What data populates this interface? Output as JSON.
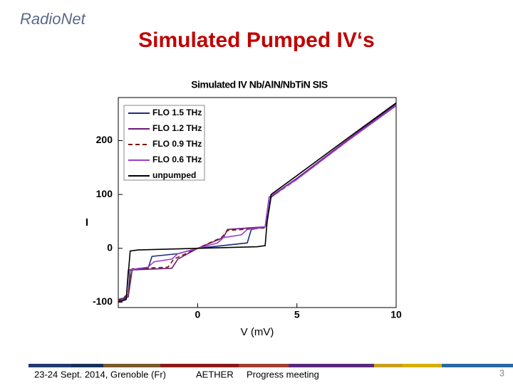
{
  "slide": {
    "logo": "RadioNet",
    "title": "Simulated Pumped IV‘s",
    "footer": {
      "date": "23-24  Sept. 2014, Grenoble (Fr)",
      "project": "AETHER",
      "meeting": "Progress meeting",
      "page": "3"
    }
  },
  "chart_data": {
    "type": "line",
    "title": "Simulated IV Nb/AlN/NbTiN  SIS",
    "x_label": "V  (mV)",
    "y_label": "I",
    "xlim": [
      -4,
      10
    ],
    "ylim": [
      -110,
      280
    ],
    "xticks": [
      0,
      5,
      10
    ],
    "yticks": [
      -100,
      0,
      100,
      200
    ],
    "series": [
      {
        "name": "FLO 1.5 THz",
        "color": "#1f2d7a",
        "dash": false,
        "x": [
          -4,
          -3.5,
          -3.4,
          -2.5,
          -2.3,
          -1,
          0,
          2.5,
          2.7,
          3.4,
          3.5,
          3.7,
          5,
          7.5,
          10
        ],
        "values": [
          -95,
          -90,
          -40,
          -37,
          -15,
          -10,
          0,
          10,
          35,
          40,
          50,
          95,
          130,
          198,
          265
        ]
      },
      {
        "name": "FLO 1.2 THz",
        "color": "#6a1a7a",
        "dash": false,
        "x": [
          -4,
          -3.5,
          -3.3,
          -1.3,
          -1,
          0,
          1.3,
          1.5,
          3.4,
          3.6,
          3.8,
          5,
          7.5,
          10
        ],
        "values": [
          -100,
          -90,
          -40,
          -37,
          -20,
          0,
          20,
          35,
          40,
          95,
          100,
          130,
          200,
          268
        ]
      },
      {
        "name": "FLO  0.9 THz",
        "color": "#7a1010",
        "dash": true,
        "x": [
          -4,
          -3.5,
          -3.3,
          -1.5,
          -1.2,
          0,
          1.2,
          1.5,
          3.4,
          3.6,
          3.8,
          5,
          7.5,
          10
        ],
        "values": [
          -98,
          -85,
          -38,
          -35,
          -20,
          0,
          20,
          33,
          38,
          93,
          98,
          128,
          198,
          266
        ]
      },
      {
        "name": "FLO  0.6 THz",
        "color": "#9b3fd0",
        "dash": false,
        "x": [
          -4,
          -3.6,
          -3.5,
          -2.5,
          -2.2,
          -1.3,
          -1,
          0,
          1,
          1.3,
          2.2,
          2.5,
          3.4,
          3.6,
          5,
          7.5,
          10
        ],
        "values": [
          -100,
          -95,
          -40,
          -35,
          -25,
          -20,
          -10,
          0,
          10,
          20,
          25,
          35,
          40,
          95,
          128,
          198,
          266
        ]
      },
      {
        "name": "unpumped",
        "color": "#000000",
        "dash": false,
        "x": [
          -4,
          -3.6,
          -3.4,
          -3,
          0,
          3,
          3.4,
          3.5,
          3.7,
          5,
          7.5,
          10
        ],
        "values": [
          -100,
          -95,
          -5,
          -3,
          0,
          3,
          5,
          50,
          100,
          135,
          203,
          270
        ]
      }
    ]
  }
}
